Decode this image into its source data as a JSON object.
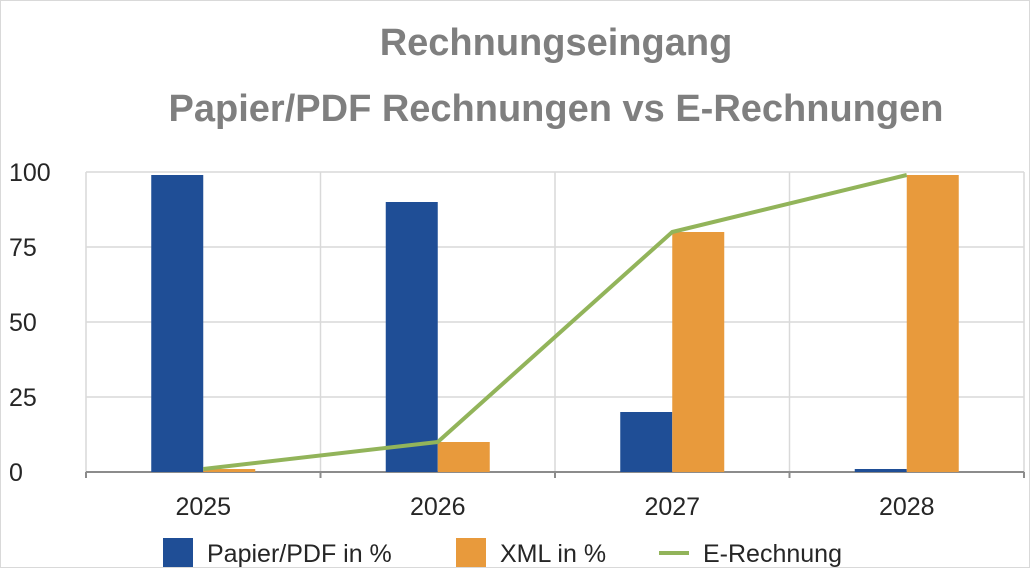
{
  "chart_data": {
    "type": "bar",
    "title": "Rechnungseingang",
    "subtitle": "Papier/PDF Rechnungen vs E-Rechnungen",
    "categories": [
      "2025",
      "2026",
      "2027",
      "2028"
    ],
    "series": [
      {
        "name": "Papier/PDF in %",
        "type": "bar",
        "color": "#1f4e96",
        "values": [
          99,
          90,
          20,
          1
        ]
      },
      {
        "name": "XML in %",
        "type": "bar",
        "color": "#e89a3c",
        "values": [
          1,
          10,
          80,
          99
        ]
      },
      {
        "name": "E-Rechnung",
        "type": "line",
        "color": "#92b45a",
        "values": [
          1,
          10,
          80,
          99
        ]
      }
    ],
    "ylim": [
      0,
      100
    ],
    "yticks": [
      "0",
      "25",
      "50",
      "75",
      "100"
    ],
    "grid": true,
    "legend_position": "bottom"
  }
}
